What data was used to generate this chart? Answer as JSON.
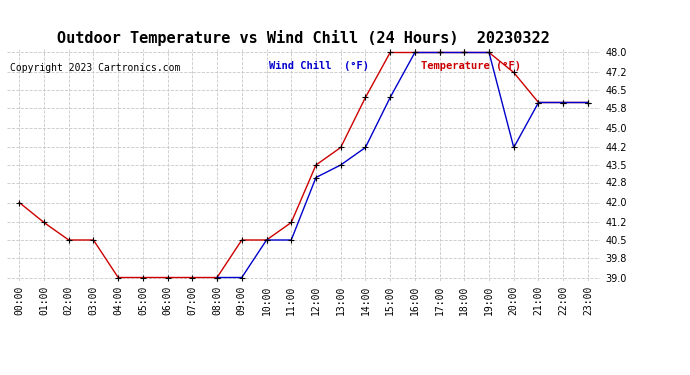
{
  "title": "Outdoor Temperature vs Wind Chill (24 Hours)  20230322",
  "copyright": "Copyright 2023 Cartronics.com",
  "legend_wind_chill": "Wind Chill  (°F)",
  "legend_temperature": "Temperature (°F)",
  "x_labels": [
    "00:00",
    "01:00",
    "02:00",
    "03:00",
    "04:00",
    "05:00",
    "06:00",
    "07:00",
    "08:00",
    "09:00",
    "10:00",
    "11:00",
    "12:00",
    "13:00",
    "14:00",
    "15:00",
    "16:00",
    "17:00",
    "18:00",
    "19:00",
    "20:00",
    "21:00",
    "22:00",
    "23:00"
  ],
  "temperature_x": [
    0,
    1,
    2,
    3,
    4,
    5,
    6,
    7,
    8,
    9,
    10,
    11,
    12,
    13,
    14,
    15,
    16,
    17,
    18,
    19,
    20,
    21,
    22,
    23
  ],
  "temperature_y": [
    42.0,
    41.2,
    40.5,
    40.5,
    39.0,
    39.0,
    39.0,
    39.0,
    39.0,
    40.5,
    40.5,
    41.2,
    43.5,
    44.2,
    46.2,
    48.0,
    48.0,
    48.0,
    48.0,
    48.0,
    47.2,
    46.0,
    46.0,
    46.0
  ],
  "wind_chill_x": [
    8,
    9,
    10,
    11,
    12,
    13,
    14,
    15,
    16,
    17,
    18,
    19,
    20,
    21,
    22,
    23
  ],
  "wind_chill_y": [
    39.0,
    39.0,
    40.5,
    40.5,
    43.0,
    43.5,
    44.2,
    46.2,
    48.0,
    48.0,
    48.0,
    48.0,
    44.2,
    46.0,
    46.0,
    46.0
  ],
  "temp_color": "#cc0000",
  "wind_color": "#0000cc",
  "ylim_min": 39.0,
  "ylim_max": 48.0,
  "yticks": [
    39.0,
    39.8,
    40.5,
    41.2,
    42.0,
    42.8,
    43.5,
    44.2,
    45.0,
    45.8,
    46.5,
    47.2,
    48.0
  ],
  "background_color": "#ffffff",
  "grid_color": "#c8c8c8",
  "title_fontsize": 11,
  "tick_fontsize": 7,
  "copyright_fontsize": 7,
  "legend_fontsize": 7.5,
  "marker": "+",
  "marker_color": "#000000",
  "marker_size": 5,
  "linewidth": 1.0
}
